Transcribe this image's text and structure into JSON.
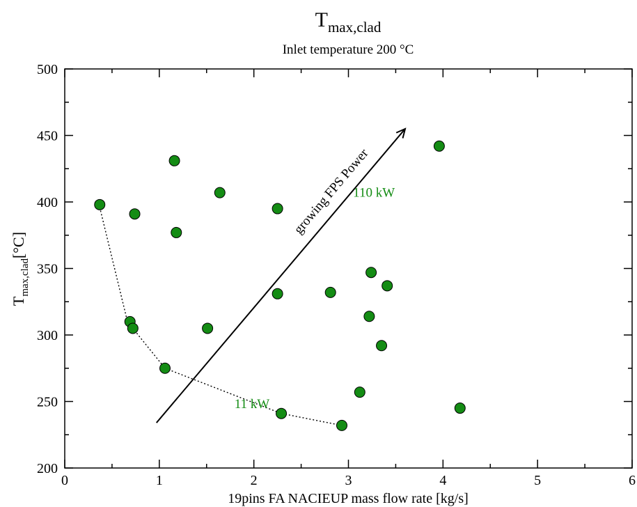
{
  "chart_data": {
    "type": "scatter",
    "title": {
      "main": "T",
      "sub": "max,clad"
    },
    "subtitle": "Inlet temperature 200 °C",
    "xlabel": "19pins FA NACIEUP mass flow rate [kg/s]",
    "ylabel": {
      "main": "T",
      "sub": "max,clad",
      "suffix": "[°C]"
    },
    "xlim": [
      0,
      6
    ],
    "ylim": [
      200,
      500
    ],
    "xticks": [
      0,
      1,
      2,
      3,
      4,
      5,
      6
    ],
    "yticks": [
      200,
      250,
      300,
      350,
      400,
      450,
      500
    ],
    "grid": false,
    "marker_color": "#148c14",
    "points": [
      {
        "x": 0.37,
        "y": 398
      },
      {
        "x": 0.69,
        "y": 310
      },
      {
        "x": 0.72,
        "y": 305
      },
      {
        "x": 0.74,
        "y": 391
      },
      {
        "x": 1.06,
        "y": 275
      },
      {
        "x": 1.16,
        "y": 431
      },
      {
        "x": 1.18,
        "y": 377
      },
      {
        "x": 1.51,
        "y": 305
      },
      {
        "x": 1.64,
        "y": 407
      },
      {
        "x": 2.25,
        "y": 331
      },
      {
        "x": 2.25,
        "y": 395
      },
      {
        "x": 2.29,
        "y": 241
      },
      {
        "x": 2.81,
        "y": 332
      },
      {
        "x": 2.93,
        "y": 232
      },
      {
        "x": 3.12,
        "y": 257
      },
      {
        "x": 3.22,
        "y": 314
      },
      {
        "x": 3.24,
        "y": 347
      },
      {
        "x": 3.35,
        "y": 292
      },
      {
        "x": 3.41,
        "y": 337
      },
      {
        "x": 3.96,
        "y": 442
      },
      {
        "x": 4.18,
        "y": 245
      }
    ],
    "dotted_line": [
      {
        "x": 0.37,
        "y": 396
      },
      {
        "x": 0.66,
        "y": 311
      },
      {
        "x": 0.72,
        "y": 305
      },
      {
        "x": 1.06,
        "y": 275
      },
      {
        "x": 2.29,
        "y": 241
      },
      {
        "x": 2.93,
        "y": 232
      }
    ],
    "arrow": {
      "x1": 0.97,
      "y1": 234,
      "x2": 3.6,
      "y2": 455
    },
    "annotations": {
      "arrow_label": {
        "text": "growing FPS Power",
        "x": 2.85,
        "y": 406
      },
      "high_power": {
        "text": "110 kW",
        "x": 3.27,
        "y": 404
      },
      "low_power": {
        "text": "11 kW",
        "x": 1.98,
        "y": 245
      }
    }
  }
}
